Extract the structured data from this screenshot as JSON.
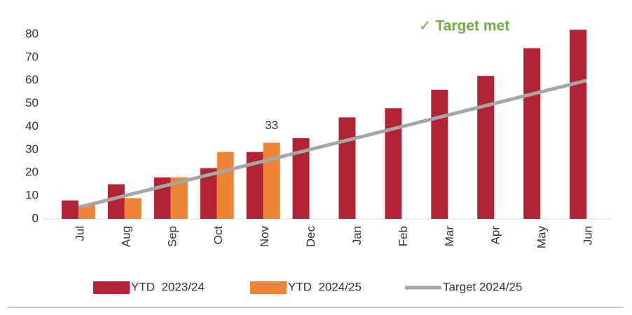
{
  "chart_data": {
    "type": "bar",
    "annotation": "✓ Target met",
    "categories": [
      "Jul",
      "Aug",
      "Sep",
      "Oct",
      "Nov",
      "Dec",
      "Jan",
      "Feb",
      "Mar",
      "Apr",
      "May",
      "Jun"
    ],
    "series": [
      {
        "name": "YTD  2023/24",
        "color": "#b22435",
        "values": [
          8,
          15,
          18,
          22,
          29,
          35,
          44,
          48,
          56,
          62,
          74,
          82
        ]
      },
      {
        "name": "YTD  2024/25",
        "color": "#ef8534",
        "values": [
          6,
          9,
          18,
          29,
          33,
          null,
          null,
          null,
          null,
          null,
          null,
          null
        ]
      },
      {
        "name": "Target 2024/25",
        "color": "#a6a6a6",
        "type": "line",
        "values": [
          5,
          10,
          15,
          20,
          25,
          30,
          35,
          40,
          45,
          50,
          55,
          60
        ]
      }
    ],
    "ylim": [
      0,
      80
    ],
    "yticks": [
      0,
      10,
      20,
      30,
      40,
      50,
      60,
      70,
      80
    ],
    "grid": false
  }
}
